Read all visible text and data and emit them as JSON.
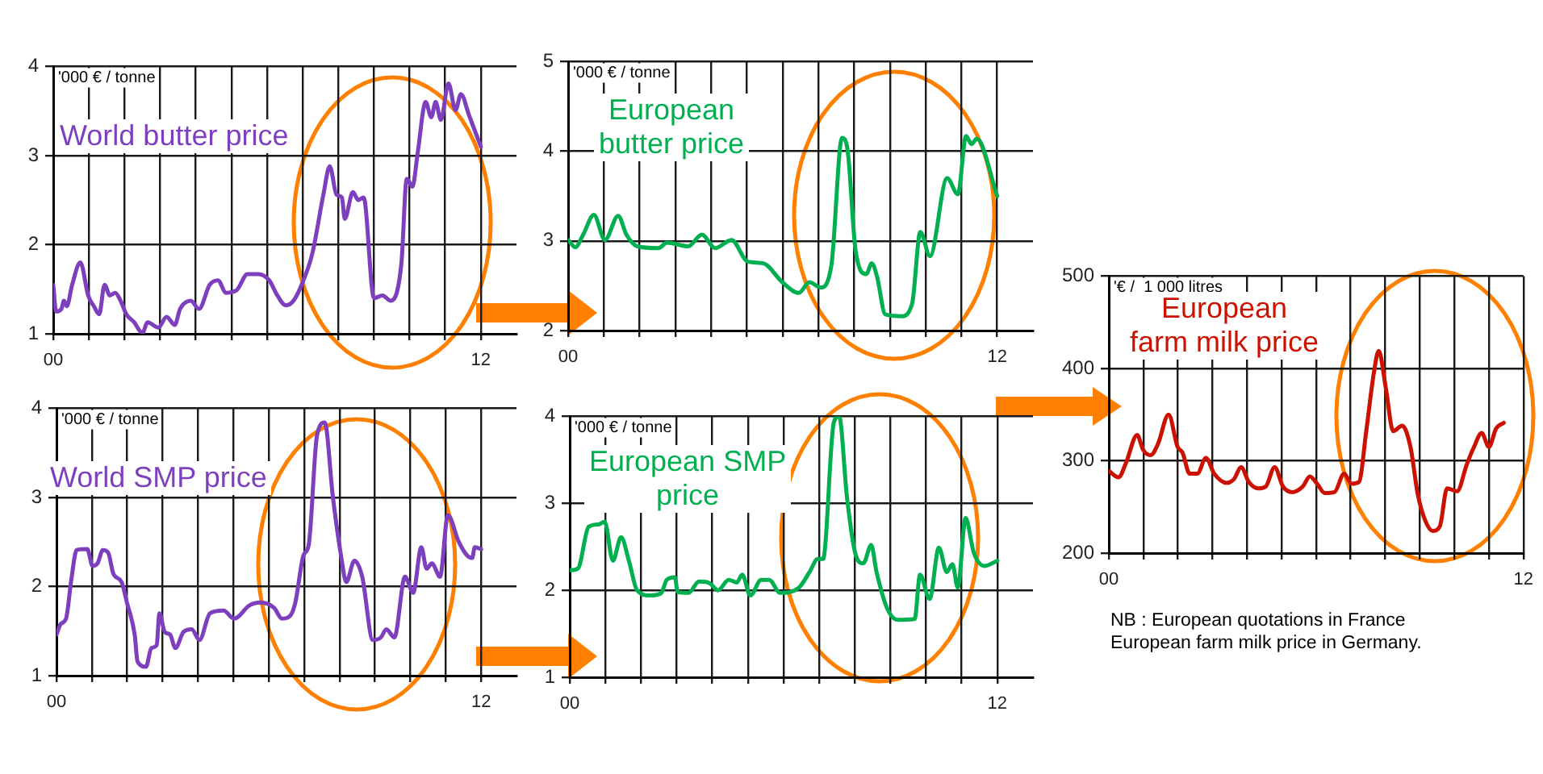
{
  "chart_data": [
    {
      "type": "line",
      "ylabel": "'000 € / tonne",
      "xlim": [
        0,
        13
      ],
      "xticks": [
        {
          "value": 0,
          "label": "00"
        },
        {
          "value": 1,
          "label": null
        },
        {
          "value": 2,
          "label": null
        },
        {
          "value": 3,
          "label": null
        },
        {
          "value": 4,
          "label": null
        },
        {
          "value": 5,
          "label": null
        },
        {
          "value": 6,
          "label": null
        },
        {
          "value": 7,
          "label": null
        },
        {
          "value": 8,
          "label": null
        },
        {
          "value": 9,
          "label": null
        },
        {
          "value": 10,
          "label": null
        },
        {
          "value": 11,
          "label": null
        },
        {
          "value": 12,
          "label": "12"
        }
      ],
      "ylim": [
        1,
        4
      ],
      "yticks": [
        1,
        2,
        3,
        4
      ],
      "grid": true,
      "marker": "none",
      "series": [
        {
          "name": "World butter price",
          "color": "#7e3fbf",
          "x": [
            0,
            0.08,
            0.23,
            0.3,
            0.38,
            0.53,
            0.76,
            0.98,
            1.14,
            1.29,
            1.44,
            1.59,
            1.74,
            1.89,
            2.05,
            2.27,
            2.5,
            2.65,
            2.95,
            3.18,
            3.41,
            3.56,
            3.86,
            4.09,
            4.39,
            4.62,
            4.85,
            5.15,
            5.45,
            5.76,
            6.06,
            6.29,
            6.52,
            6.74,
            6.97,
            7.27,
            7.58,
            7.76,
            7.95,
            8.1,
            8.18,
            8.41,
            8.56,
            8.71,
            9.0,
            9.24,
            9.47,
            9.77,
            9.92,
            10.08,
            10.23,
            10.45,
            10.61,
            10.73,
            10.88,
            11.09,
            11.29,
            11.44,
            11.67,
            12.0
          ],
          "values": [
            1.55,
            1.25,
            1.28,
            1.37,
            1.31,
            1.55,
            1.8,
            1.43,
            1.31,
            1.22,
            1.55,
            1.43,
            1.46,
            1.37,
            1.22,
            1.13,
            1.01,
            1.13,
            1.07,
            1.19,
            1.1,
            1.28,
            1.37,
            1.28,
            1.55,
            1.6,
            1.46,
            1.49,
            1.67,
            1.67,
            1.6,
            1.43,
            1.32,
            1.37,
            1.55,
            1.9,
            2.56,
            2.88,
            2.56,
            2.53,
            2.29,
            2.59,
            2.5,
            2.53,
            1.4,
            1.43,
            1.37,
            1.79,
            2.74,
            2.65,
            3.04,
            3.6,
            3.43,
            3.6,
            3.4,
            3.81,
            3.51,
            3.69,
            3.45,
            3.1
          ]
        }
      ]
    },
    {
      "type": "line",
      "ylabel": "'000 € / tonne",
      "xlim": [
        0,
        13
      ],
      "xticks": [
        {
          "value": 0,
          "label": "00"
        },
        {
          "value": 1,
          "label": null
        },
        {
          "value": 2,
          "label": null
        },
        {
          "value": 3,
          "label": null
        },
        {
          "value": 4,
          "label": null
        },
        {
          "value": 5,
          "label": null
        },
        {
          "value": 6,
          "label": null
        },
        {
          "value": 7,
          "label": null
        },
        {
          "value": 8,
          "label": null
        },
        {
          "value": 9,
          "label": null
        },
        {
          "value": 10,
          "label": null
        },
        {
          "value": 11,
          "label": null
        },
        {
          "value": 12,
          "label": "12"
        }
      ],
      "ylim": [
        2,
        5
      ],
      "yticks": [
        2,
        3,
        4,
        5
      ],
      "grid": true,
      "marker": "none",
      "series": [
        {
          "name": "European butter  price",
          "color": "#00b050",
          "x": [
            0,
            0.2,
            0.42,
            0.72,
            1.03,
            1.4,
            1.63,
            1.93,
            2.53,
            2.76,
            3.36,
            3.74,
            4.11,
            4.57,
            5.02,
            5.46,
            5.99,
            6.45,
            6.75,
            7.06,
            7.36,
            7.66,
            7.81,
            8.04,
            8.34,
            8.49,
            8.64,
            8.87,
            9.32,
            9.62,
            9.85,
            10.12,
            10.6,
            10.9,
            11.13,
            11.28,
            11.43,
            12
          ],
          "values": [
            3.01,
            2.93,
            3.07,
            3.29,
            3.01,
            3.28,
            3.07,
            2.94,
            2.92,
            2.98,
            2.94,
            3.07,
            2.92,
            3.01,
            2.77,
            2.75,
            2.54,
            2.42,
            2.54,
            2.48,
            2.72,
            4.15,
            4.03,
            2.89,
            2.63,
            2.75,
            2.6,
            2.18,
            2.16,
            2.3,
            3.1,
            2.83,
            3.7,
            3.52,
            4.17,
            4.08,
            4.14,
            3.5
          ]
        }
      ]
    },
    {
      "type": "line",
      "ylabel": "'000 € / tonne",
      "xlim": [
        0,
        13
      ],
      "xticks": [
        {
          "value": 0,
          "label": "00"
        },
        {
          "value": 1,
          "label": null
        },
        {
          "value": 2,
          "label": null
        },
        {
          "value": 3,
          "label": null
        },
        {
          "value": 4,
          "label": null
        },
        {
          "value": 5,
          "label": null
        },
        {
          "value": 6,
          "label": null
        },
        {
          "value": 7,
          "label": null
        },
        {
          "value": 8,
          "label": null
        },
        {
          "value": 9,
          "label": null
        },
        {
          "value": 10,
          "label": null
        },
        {
          "value": 11,
          "label": null
        },
        {
          "value": 12,
          "label": "12"
        }
      ],
      "ylim": [
        1,
        4
      ],
      "yticks": [
        1,
        2,
        3,
        4
      ],
      "grid": true,
      "marker": "none",
      "series": [
        {
          "name": "World SMP price",
          "color": "#7e3fbf",
          "x": [
            0,
            0.12,
            0.27,
            0.42,
            0.57,
            0.87,
            1.02,
            1.16,
            1.31,
            1.46,
            1.61,
            1.84,
            1.99,
            2.21,
            2.29,
            2.53,
            2.68,
            2.83,
            2.91,
            3.06,
            3.21,
            3.36,
            3.59,
            3.82,
            4.04,
            4.34,
            4.72,
            5.02,
            5.46,
            5.76,
            6.15,
            6.37,
            6.6,
            6.75,
            6.98,
            7.13,
            7.36,
            7.58,
            7.81,
            8.04,
            8.19,
            8.42,
            8.64,
            8.94,
            9.17,
            9.32,
            9.55,
            9.85,
            10.08,
            10.31,
            10.46,
            10.61,
            10.84,
            11.06,
            11.37,
            11.6,
            11.75,
            11.82,
            12
          ],
          "values": [
            1.46,
            1.58,
            1.64,
            2.08,
            2.41,
            2.42,
            2.23,
            2.26,
            2.41,
            2.38,
            2.14,
            2.05,
            1.82,
            1.46,
            1.16,
            1.1,
            1.31,
            1.34,
            1.7,
            1.49,
            1.46,
            1.31,
            1.49,
            1.52,
            1.4,
            1.7,
            1.73,
            1.64,
            1.79,
            1.82,
            1.76,
            1.64,
            1.67,
            1.82,
            2.35,
            2.47,
            3.69,
            3.84,
            3.01,
            2.35,
            2.05,
            2.29,
            2.11,
            1.4,
            1.43,
            1.52,
            1.43,
            2.11,
            1.93,
            2.44,
            2.2,
            2.26,
            2.11,
            2.8,
            2.5,
            2.35,
            2.32,
            2.44,
            2.42
          ]
        }
      ]
    },
    {
      "type": "line",
      "ylabel": "'000 € / tonne",
      "xlim": [
        0,
        13
      ],
      "xticks": [
        {
          "value": 0,
          "label": "00"
        },
        {
          "value": 1,
          "label": null
        },
        {
          "value": 2,
          "label": null
        },
        {
          "value": 3,
          "label": null
        },
        {
          "value": 4,
          "label": null
        },
        {
          "value": 5,
          "label": null
        },
        {
          "value": 6,
          "label": null
        },
        {
          "value": 7,
          "label": null
        },
        {
          "value": 8,
          "label": null
        },
        {
          "value": 9,
          "label": null
        },
        {
          "value": 10,
          "label": null
        },
        {
          "value": 11,
          "label": null
        },
        {
          "value": 12,
          "label": "12"
        }
      ],
      "ylim": [
        1,
        4
      ],
      "yticks": [
        1,
        2,
        3,
        4
      ],
      "grid": true,
      "marker": "none",
      "series": [
        {
          "name": "European SMP price",
          "color": "#00b050",
          "x": [
            0,
            0.23,
            0.53,
            0.83,
            0.98,
            1.21,
            1.44,
            1.66,
            1.89,
            2.27,
            2.57,
            2.72,
            2.95,
            3.03,
            3.33,
            3.63,
            3.93,
            4.16,
            4.46,
            4.69,
            4.84,
            5.07,
            5.37,
            5.6,
            5.9,
            6.43,
            6.73,
            6.96,
            7.11,
            7.41,
            7.56,
            7.78,
            8.01,
            8.24,
            8.46,
            8.61,
            8.91,
            9.21,
            9.68,
            9.83,
            10.1,
            10.36,
            10.58,
            10.74,
            10.89,
            11.11,
            11.34,
            11.64,
            12
          ],
          "values": [
            2.23,
            2.25,
            2.73,
            2.76,
            2.79,
            2.34,
            2.61,
            2.34,
            2.0,
            1.94,
            1.97,
            2.12,
            2.15,
            1.98,
            1.97,
            2.1,
            2.08,
            2.0,
            2.12,
            2.09,
            2.18,
            1.94,
            2.12,
            2.12,
            1.97,
            2.03,
            2.21,
            2.36,
            2.36,
            3.93,
            4.0,
            3.07,
            2.43,
            2.31,
            2.52,
            2.21,
            1.79,
            1.66,
            1.67,
            2.18,
            1.9,
            2.49,
            2.21,
            2.3,
            2.03,
            2.83,
            2.43,
            2.28,
            2.34
          ]
        }
      ]
    },
    {
      "type": "line",
      "ylabel": "'€ /  1 000 litres",
      "xlim": [
        0,
        12
      ],
      "xticks": [
        {
          "value": 0,
          "label": "00"
        },
        {
          "value": 1,
          "label": null
        },
        {
          "value": 2,
          "label": null
        },
        {
          "value": 3,
          "label": null
        },
        {
          "value": 4,
          "label": null
        },
        {
          "value": 5,
          "label": null
        },
        {
          "value": 6,
          "label": null
        },
        {
          "value": 7,
          "label": null
        },
        {
          "value": 8,
          "label": null
        },
        {
          "value": 9,
          "label": null
        },
        {
          "value": 10,
          "label": null
        },
        {
          "value": 11,
          "label": null
        },
        {
          "value": 12,
          "label": "12"
        }
      ],
      "ylim": [
        200,
        500
      ],
      "yticks": [
        200,
        300,
        400,
        500
      ],
      "grid": true,
      "marker": "none",
      "annotations": [
        "NB : European quotations in France",
        "European farm  milk price in Germany."
      ],
      "series": [
        {
          "name": "European farm milk price",
          "color": "#cc1100",
          "x": [
            0,
            0.28,
            0.5,
            0.82,
            0.99,
            1.21,
            1.42,
            1.73,
            1.99,
            2.13,
            2.34,
            2.56,
            2.81,
            3.05,
            3.41,
            3.62,
            3.83,
            4.05,
            4.33,
            4.54,
            4.8,
            5.04,
            5.32,
            5.61,
            5.82,
            6.03,
            6.25,
            6.53,
            6.81,
            7.03,
            7.24,
            7.45,
            7.67,
            7.81,
            8.02,
            8.23,
            8.49,
            8.73,
            8.94,
            9.16,
            9.37,
            9.58,
            9.79,
            10.08,
            10.36,
            10.57,
            10.79,
            11.0,
            11.21,
            11.43
          ],
          "values": [
            289,
            282,
            298,
            328,
            312,
            306,
            318,
            350,
            315,
            309,
            286,
            286,
            303,
            286,
            276,
            280,
            293,
            277,
            270,
            272,
            293,
            272,
            266,
            272,
            283,
            275,
            265,
            266,
            286,
            275,
            277,
            332,
            395,
            419,
            378,
            332,
            338,
            315,
            264,
            235,
            224,
            229,
            270,
            267,
            296,
            315,
            330,
            315,
            335,
            341
          ]
        }
      ]
    }
  ]
}
